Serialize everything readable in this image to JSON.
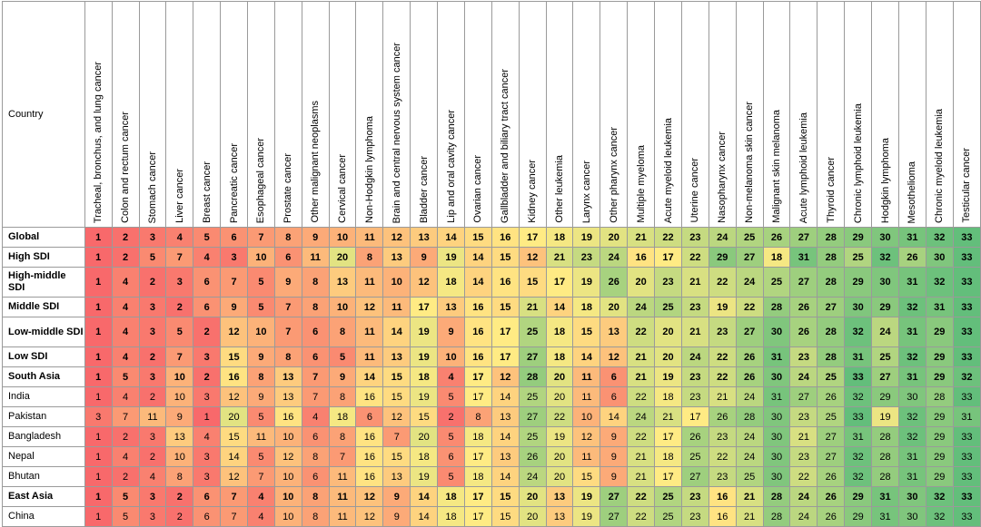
{
  "table": {
    "country_header": "Country",
    "columns": [
      "Tracheal, bronchus, and lung cancer",
      "Colon and rectum cancer",
      "Stomach cancer",
      "Liver cancer",
      "Breast cancer",
      "Pancreatic cancer",
      "Esophageal cancer",
      "Prostate cancer",
      "Other malignant neoplasms",
      "Cervical cancer",
      "Non-Hodgkin lymphoma",
      "Brain and central nervous system cancer",
      "Bladder cancer",
      "Lip and oral cavity cancer",
      "Ovarian cancer",
      "Gallbladder and biliary tract cancer",
      "Kidney cancer",
      "Other leukemia",
      "Larynx cancer",
      "Other pharynx cancer",
      "Multiple myeloma",
      "Acute myeloid leukemia",
      "Uterine cancer",
      "Nasopharynx cancer",
      "Non-melanoma skin cancer",
      "Malignant skin melanoma",
      "Acute lymphoid leukemia",
      "Thyroid cancer",
      "Chronic lymphoid leukemia",
      "Hodgkin lymphoma",
      "Mesothelioma",
      "Chronic myeloid leukemia",
      "Testicular cancer"
    ],
    "rows": [
      {
        "label": "Global",
        "bold": true,
        "values": [
          1,
          2,
          3,
          4,
          5,
          6,
          7,
          8,
          9,
          10,
          11,
          12,
          13,
          14,
          15,
          16,
          17,
          18,
          19,
          20,
          21,
          22,
          23,
          24,
          25,
          26,
          27,
          28,
          29,
          30,
          31,
          32,
          33
        ]
      },
      {
        "label": "High SDI",
        "bold": true,
        "values": [
          1,
          2,
          5,
          7,
          4,
          3,
          10,
          6,
          11,
          20,
          8,
          13,
          9,
          19,
          14,
          15,
          12,
          21,
          23,
          24,
          16,
          17,
          22,
          29,
          27,
          18,
          31,
          28,
          25,
          32,
          26,
          30,
          33
        ]
      },
      {
        "label": "High-middle SDI",
        "bold": true,
        "values": [
          1,
          4,
          2,
          3,
          6,
          7,
          5,
          9,
          8,
          13,
          11,
          10,
          12,
          18,
          14,
          16,
          15,
          17,
          19,
          26,
          20,
          23,
          21,
          22,
          24,
          25,
          27,
          28,
          29,
          30,
          31,
          32,
          33
        ]
      },
      {
        "label": "Middle SDI",
        "bold": true,
        "values": [
          1,
          4,
          3,
          2,
          6,
          9,
          5,
          7,
          8,
          10,
          12,
          11,
          17,
          13,
          16,
          15,
          21,
          14,
          18,
          20,
          24,
          25,
          23,
          19,
          22,
          28,
          26,
          27,
          30,
          29,
          32,
          31,
          33
        ]
      },
      {
        "label": "Low-middle SDI",
        "bold": true,
        "values": [
          1,
          4,
          3,
          5,
          2,
          12,
          10,
          7,
          6,
          8,
          11,
          14,
          19,
          9,
          16,
          17,
          25,
          18,
          15,
          13,
          22,
          20,
          21,
          23,
          27,
          30,
          26,
          28,
          32,
          24,
          31,
          29,
          33
        ]
      },
      {
        "label": "Low SDI",
        "bold": true,
        "values": [
          1,
          4,
          2,
          7,
          3,
          15,
          9,
          8,
          6,
          5,
          11,
          13,
          19,
          10,
          16,
          17,
          27,
          18,
          14,
          12,
          21,
          20,
          24,
          22,
          26,
          31,
          23,
          28,
          31,
          25,
          32,
          29,
          33
        ]
      },
      {
        "label": "South Asia",
        "bold": true,
        "values": [
          1,
          5,
          3,
          10,
          2,
          16,
          8,
          13,
          7,
          9,
          14,
          15,
          18,
          4,
          17,
          12,
          28,
          20,
          11,
          6,
          21,
          19,
          23,
          22,
          26,
          30,
          24,
          25,
          33,
          27,
          31,
          29,
          32
        ]
      },
      {
        "label": "India",
        "bold": false,
        "values": [
          1,
          4,
          2,
          10,
          3,
          12,
          9,
          13,
          7,
          8,
          16,
          15,
          19,
          5,
          17,
          14,
          25,
          20,
          11,
          6,
          22,
          18,
          23,
          21,
          24,
          31,
          27,
          26,
          32,
          29,
          30,
          28,
          33
        ]
      },
      {
        "label": "Pakistan",
        "bold": false,
        "values": [
          3,
          7,
          11,
          9,
          1,
          20,
          5,
          16,
          4,
          18,
          6,
          12,
          15,
          2,
          8,
          13,
          27,
          22,
          10,
          14,
          24,
          21,
          17,
          26,
          28,
          30,
          23,
          25,
          33,
          19,
          32,
          29,
          31
        ]
      },
      {
        "label": "Bangladesh",
        "bold": false,
        "values": [
          1,
          2,
          3,
          13,
          4,
          15,
          11,
          10,
          6,
          8,
          16,
          7,
          20,
          5,
          18,
          14,
          25,
          19,
          12,
          9,
          22,
          17,
          26,
          23,
          24,
          30,
          21,
          27,
          31,
          28,
          32,
          29,
          33
        ]
      },
      {
        "label": "Nepal",
        "bold": false,
        "values": [
          1,
          4,
          2,
          10,
          3,
          14,
          5,
          12,
          8,
          7,
          16,
          15,
          18,
          6,
          17,
          13,
          26,
          20,
          11,
          9,
          21,
          18,
          25,
          22,
          24,
          30,
          23,
          27,
          32,
          28,
          31,
          29,
          33
        ]
      },
      {
        "label": "Bhutan",
        "bold": false,
        "values": [
          1,
          2,
          4,
          8,
          3,
          12,
          7,
          10,
          6,
          11,
          16,
          13,
          19,
          5,
          18,
          14,
          24,
          20,
          15,
          9,
          21,
          17,
          27,
          23,
          25,
          30,
          22,
          26,
          32,
          28,
          31,
          29,
          33
        ]
      },
      {
        "label": "East Asia",
        "bold": true,
        "values": [
          1,
          5,
          3,
          2,
          6,
          7,
          4,
          10,
          8,
          11,
          12,
          9,
          14,
          18,
          17,
          15,
          20,
          13,
          19,
          27,
          22,
          25,
          23,
          16,
          21,
          28,
          24,
          26,
          29,
          31,
          30,
          32,
          33
        ]
      },
      {
        "label": "China",
        "bold": false,
        "values": [
          1,
          5,
          3,
          2,
          6,
          7,
          4,
          10,
          8,
          11,
          12,
          9,
          14,
          18,
          17,
          15,
          20,
          13,
          19,
          27,
          22,
          25,
          23,
          16,
          21,
          28,
          24,
          26,
          29,
          31,
          30,
          32,
          33
        ]
      }
    ]
  },
  "scale_colors": {
    "low": "#f8696b",
    "mid": "#ffeb84",
    "high": "#63be7b"
  }
}
